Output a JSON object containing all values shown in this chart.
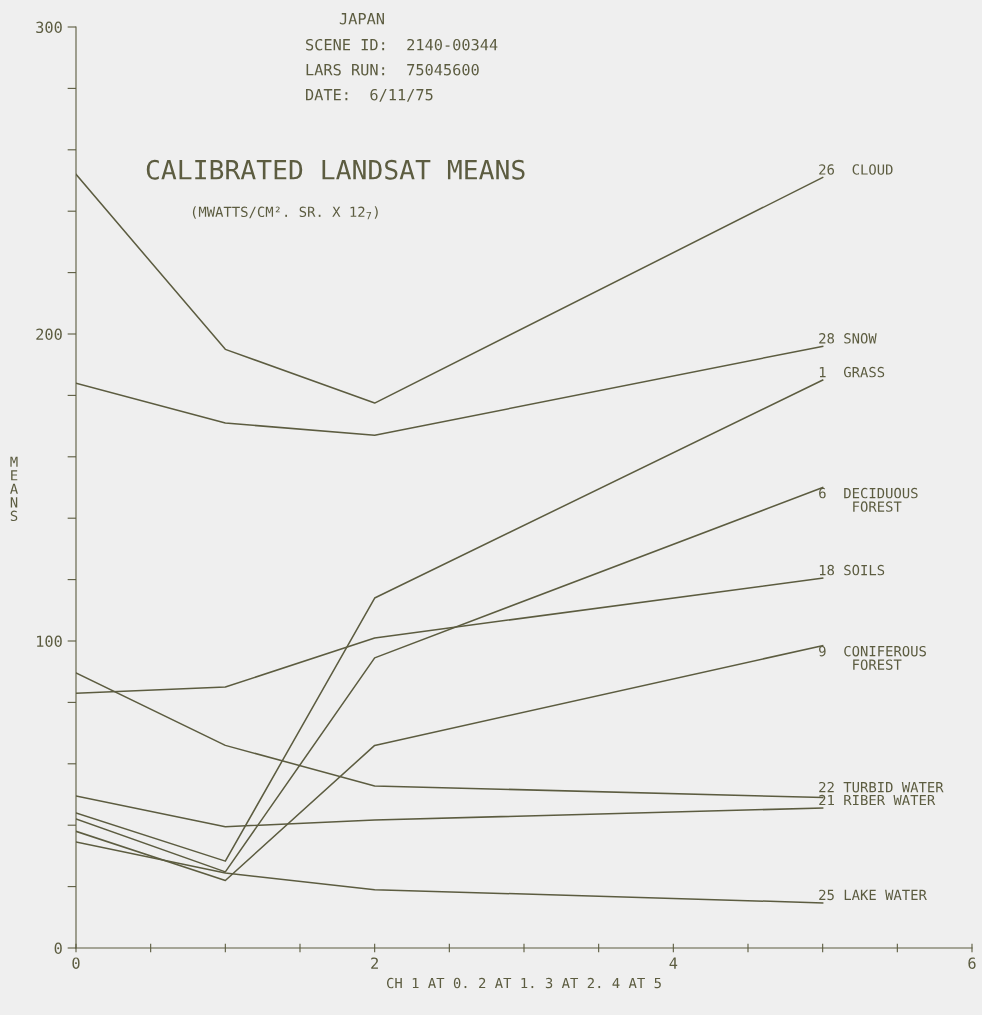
{
  "chart_data": {
    "type": "line",
    "title": "CALIBRATED LANDSAT MEANS",
    "subtitle": "(MWATTS/CM². SR. X 12$_{7}$)",
    "xlabel": "CH 1 AT 0. 2 AT 1. 3 AT 2. 4 AT 5",
    "ylabel": "MEANS",
    "annotations": [
      "JAPAN",
      "SCENE ID:  2140-00344",
      "LARS RUN:  75045600",
      "DATE:  6/11/75"
    ],
    "x": [
      0,
      1,
      2,
      5
    ],
    "series": [
      {
        "name": "26  CLOUD",
        "color": "#5c5c40",
        "values": [
          252,
          195,
          177.5,
          251
        ]
      },
      {
        "name": "28 SNOW",
        "color": "#5c5c40",
        "values": [
          184,
          171,
          167,
          196
        ]
      },
      {
        "name": "1  GRASS",
        "color": "#5c5c40",
        "values": [
          44,
          28.3,
          114,
          185
        ]
      },
      {
        "name": "6  DECIDUOUS\n    FOREST",
        "color": "#5c5c40",
        "values": [
          42,
          24.8,
          94.5,
          150
        ]
      },
      {
        "name": "18 SOILS",
        "color": "#5c5c40",
        "values": [
          83,
          85,
          101,
          120.5
        ]
      },
      {
        "name": "9  CONIFEROUS\n    FOREST",
        "color": "#5c5c40",
        "values": [
          38,
          22,
          66,
          98.5
        ]
      },
      {
        "name": "22 TURBID WATER",
        "color": "#5c5c40",
        "values": [
          89.6,
          66,
          52.8,
          49
        ]
      },
      {
        "name": "21 RIBER WATER",
        "color": "#5c5c40",
        "values": [
          49.5,
          39.5,
          41.7,
          45.6
        ]
      },
      {
        "name": "25 LAKE WATER",
        "color": "#5c5c40",
        "values": [
          34.5,
          24.4,
          19,
          14.7
        ]
      }
    ],
    "xlim": [
      0,
      6
    ],
    "ylim": [
      0,
      300
    ],
    "xticks": [
      0,
      {
        "value": 0.5,
        "label": null
      },
      {
        "value": 1,
        "label": null
      },
      {
        "value": 1.5,
        "label": null
      },
      2,
      {
        "value": 2.5,
        "label": null
      },
      {
        "value": 3,
        "label": null
      },
      {
        "value": 3.5,
        "label": null
      },
      4,
      {
        "value": 4.5,
        "label": null
      },
      {
        "value": 5,
        "label": null
      },
      {
        "value": 5.5,
        "label": null
      },
      6
    ],
    "yticks": [
      0,
      {
        "value": 20,
        "label": null
      },
      {
        "value": 40,
        "label": null
      },
      {
        "value": 60,
        "label": null
      },
      {
        "value": 80,
        "label": null
      },
      100,
      {
        "value": 120,
        "label": null
      },
      {
        "value": 140,
        "label": null
      },
      {
        "value": 160,
        "label": null
      },
      {
        "value": 180,
        "label": null
      },
      200,
      {
        "value": 220,
        "label": null
      },
      {
        "value": 240,
        "label": null
      },
      {
        "value": 260,
        "label": null
      },
      {
        "value": 280,
        "label": null
      },
      300
    ],
    "grid": false,
    "legend": false,
    "marker": "none",
    "line_style": "solid"
  }
}
